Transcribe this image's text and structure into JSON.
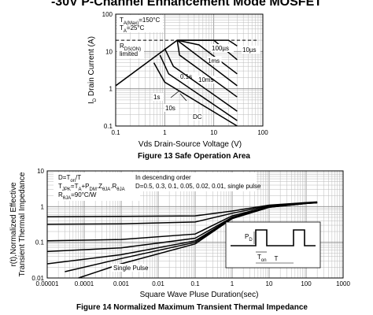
{
  "page_title": "-30V P-Channel Enhancement Mode MOSFET",
  "chart_data": [
    {
      "type": "line",
      "caption": "Figure 13 Safe Operation Area",
      "xlabel": "Vds Drain-Source Voltage (V)",
      "ylabel": "I_D Drain Current (A)",
      "xscale": "log",
      "yscale": "log",
      "xlim": [
        0.1,
        100
      ],
      "ylim": [
        0.1,
        100
      ],
      "x_ticks": [
        "0.1",
        "1",
        "10",
        "100"
      ],
      "y_ticks": [
        "0.1",
        "1",
        "10",
        "100"
      ],
      "conditions": [
        "T_A(Max)=150°C",
        "T_A=25°C"
      ],
      "region_label": [
        "R_DS(ON)",
        "limited"
      ],
      "current_limit": 20,
      "rdson_line": {
        "x": [
          0.1,
          1.8
        ],
        "y": [
          1.2,
          20
        ]
      },
      "series": [
        {
          "name": "10µs",
          "x": [
            1.8,
            20,
            30
          ],
          "y": [
            20,
            20,
            14
          ]
        },
        {
          "name": "100µs",
          "x": [
            1.8,
            10,
            30
          ],
          "y": [
            20,
            20,
            6
          ]
        },
        {
          "name": "1ms",
          "x": [
            1.8,
            5,
            30
          ],
          "y": [
            20,
            15,
            2.5
          ]
        },
        {
          "name": "10ms",
          "x": [
            1.8,
            3,
            30
          ],
          "y": [
            20,
            12,
            1.2
          ]
        },
        {
          "name": "0.1s",
          "x": [
            1.8,
            2,
            30
          ],
          "y": [
            20,
            8,
            0.6
          ]
        },
        {
          "name": "1s",
          "x": [
            1.0,
            1.5,
            30
          ],
          "y": [
            12,
            4,
            0.25
          ]
        },
        {
          "name": "10s",
          "x": [
            0.8,
            1.2,
            30
          ],
          "y": [
            8,
            2.5,
            0.14
          ]
        },
        {
          "name": "DC",
          "x": [
            0.6,
            1.0,
            30
          ],
          "y": [
            5,
            1.5,
            0.1
          ]
        }
      ]
    },
    {
      "type": "line",
      "caption": "Figure 14 Normalized Maximum Transient Thermal Impedance",
      "xlabel": "Square Wave Pluse Duration(sec)",
      "ylabel": [
        "r(t),Normalized Effective",
        "Transient Thermal Impedance"
      ],
      "xscale": "log",
      "yscale": "log",
      "xlim": [
        1e-05,
        1000
      ],
      "ylim": [
        0.01,
        10
      ],
      "x_ticks": [
        "0.00001",
        "0.0001",
        "0.001",
        "0.01",
        "0.1",
        "1",
        "10",
        "100",
        "1000"
      ],
      "y_ticks": [
        "0.01",
        "0.1",
        "1",
        "10"
      ],
      "legend_left": [
        "D=T_on/T",
        "T_JPK=T_A+P_DM.Z_θJA.R_θJA",
        "R_θJA=90°C/W"
      ],
      "legend_right": [
        "In descending order",
        "D=0.5, 0.3, 0.1, 0.05, 0.02, 0.01, single pulse"
      ],
      "single_pulse_label": "Single Pulse",
      "inset_labels": {
        "pd": "P_D",
        "ton": "T_on",
        "t": "T"
      },
      "series": [
        {
          "name": "D=0.5",
          "x": [
            1e-05,
            0.001,
            0.1,
            1,
            10,
            100,
            200
          ],
          "y": [
            0.52,
            0.53,
            0.55,
            0.75,
            1.1,
            1.3,
            1.35
          ]
        },
        {
          "name": "D=0.3",
          "x": [
            1e-05,
            0.001,
            0.1,
            1,
            10,
            100,
            200
          ],
          "y": [
            0.32,
            0.33,
            0.37,
            0.65,
            1.05,
            1.28,
            1.33
          ]
        },
        {
          "name": "D=0.1",
          "x": [
            1e-05,
            0.001,
            0.1,
            1,
            10,
            100,
            200
          ],
          "y": [
            0.11,
            0.12,
            0.17,
            0.55,
            1.0,
            1.25,
            1.3
          ]
        },
        {
          "name": "D=0.05",
          "x": [
            1e-05,
            0.001,
            0.1,
            1,
            10,
            100,
            200
          ],
          "y": [
            0.055,
            0.07,
            0.13,
            0.5,
            0.98,
            1.24,
            1.3
          ]
        },
        {
          "name": "D=0.02",
          "x": [
            1e-05,
            0.001,
            0.1,
            1,
            10,
            100,
            200
          ],
          "y": [
            0.025,
            0.045,
            0.11,
            0.48,
            0.97,
            1.23,
            1.29
          ]
        },
        {
          "name": "D=0.01",
          "x": [
            3e-05,
            0.001,
            0.1,
            1,
            10,
            100,
            200
          ],
          "y": [
            0.015,
            0.035,
            0.1,
            0.47,
            0.96,
            1.22,
            1.28
          ]
        },
        {
          "name": "single pulse",
          "x": [
            7e-05,
            0.001,
            0.1,
            1,
            10,
            100,
            200
          ],
          "y": [
            0.01,
            0.025,
            0.09,
            0.46,
            0.95,
            1.22,
            1.28
          ]
        }
      ]
    }
  ]
}
